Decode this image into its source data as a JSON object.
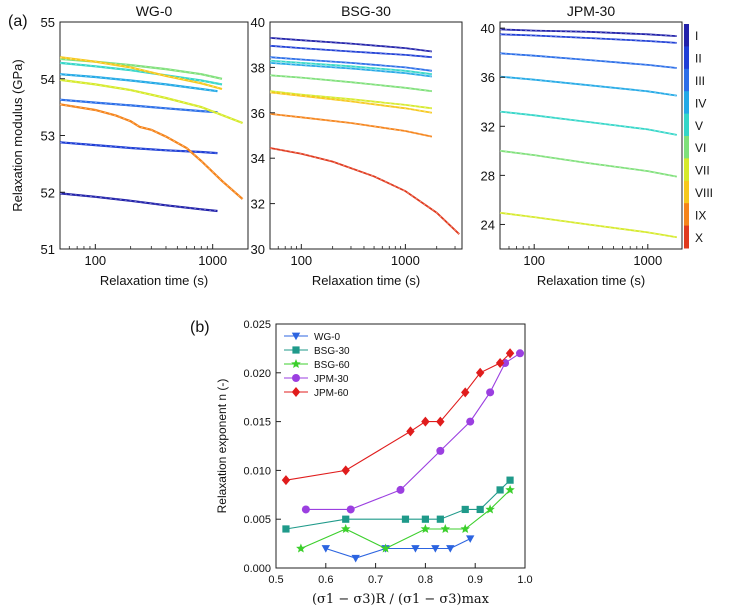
{
  "figure": {
    "panel_a_label": "(a)",
    "panel_b_label": "(b)"
  },
  "colors": {
    "level_colors": [
      "#2222aa",
      "#1f3fd6",
      "#2b6ee8",
      "#23a9e6",
      "#34d6c8",
      "#7fe07a",
      "#d6ea2a",
      "#f6c81c",
      "#f5841b",
      "#e03a1e"
    ],
    "WG-0": "#2c64e0",
    "BSG-30": "#1f9a8a",
    "BSG-60": "#3ccf2c",
    "JPM-30": "#9b3fe0",
    "JPM-60": "#e01c1c"
  },
  "colorbar": {
    "labels": [
      "I",
      "II",
      "III",
      "IV",
      "V",
      "VI",
      "VII",
      "VIII",
      "IX",
      "X"
    ]
  },
  "chart_data": [
    {
      "type": "line",
      "title": "WG-0",
      "xlabel": "Relaxation time (s)",
      "ylabel": "Relaxation modulus (GPa)",
      "xscale": "log",
      "xlim": [
        50,
        2000
      ],
      "ylim": [
        51,
        55
      ],
      "xticks": [
        100,
        1000
      ],
      "xtick_labels": [
        "100",
        "1000"
      ],
      "yticks": [
        51,
        52,
        53,
        54,
        55
      ],
      "ytick_labels": [
        "51",
        "52",
        "53",
        "54",
        "55"
      ],
      "series": [
        {
          "name": "I",
          "x": [
            50,
            100,
            200,
            400,
            800,
            1100
          ],
          "y": [
            51.98,
            51.92,
            51.85,
            51.77,
            51.7,
            51.67
          ]
        },
        {
          "name": "II",
          "x": [
            50,
            100,
            200,
            400,
            800,
            1100
          ],
          "y": [
            52.88,
            52.83,
            52.78,
            52.74,
            52.71,
            52.69
          ]
        },
        {
          "name": "III",
          "x": [
            50,
            100,
            200,
            400,
            800,
            1100
          ],
          "y": [
            53.63,
            53.58,
            53.53,
            53.48,
            53.43,
            53.41
          ]
        },
        {
          "name": "IV",
          "x": [
            50,
            100,
            200,
            400,
            800,
            1100
          ],
          "y": [
            54.08,
            54.03,
            53.97,
            53.9,
            53.82,
            53.78
          ]
        },
        {
          "name": "V",
          "x": [
            50,
            100,
            200,
            400,
            800,
            1200
          ],
          "y": [
            54.28,
            54.22,
            54.15,
            54.06,
            53.97,
            53.9
          ]
        },
        {
          "name": "VI",
          "x": [
            50,
            100,
            200,
            400,
            800,
            1200
          ],
          "y": [
            54.35,
            54.3,
            54.24,
            54.17,
            54.08,
            54.0
          ]
        },
        {
          "name": "VII",
          "x": [
            50,
            100,
            200,
            400,
            800,
            1800
          ],
          "y": [
            53.98,
            53.9,
            53.8,
            53.66,
            53.5,
            53.22
          ]
        },
        {
          "name": "VIII",
          "x": [
            50,
            100,
            200,
            400,
            800,
            1200
          ],
          "y": [
            54.38,
            54.3,
            54.2,
            54.05,
            53.92,
            53.82
          ]
        },
        {
          "name": "IX",
          "x": [
            50,
            100,
            150,
            200,
            240,
            300,
            400,
            600,
            800,
            1200,
            1800
          ],
          "y": [
            53.55,
            53.45,
            53.35,
            53.25,
            53.15,
            53.1,
            52.98,
            52.78,
            52.55,
            52.2,
            51.88
          ]
        }
      ]
    },
    {
      "type": "line",
      "title": "BSG-30",
      "xlabel": "Relaxation time (s)",
      "ylabel": "",
      "xscale": "log",
      "xlim": [
        50,
        3500
      ],
      "ylim": [
        30,
        40
      ],
      "xticks": [
        100,
        1000
      ],
      "xtick_labels": [
        "100",
        "1000"
      ],
      "yticks": [
        30,
        32,
        34,
        36,
        38,
        40
      ],
      "ytick_labels": [
        "30",
        "32",
        "34",
        "36",
        "38",
        "40"
      ],
      "series": [
        {
          "name": "I",
          "x": [
            50,
            100,
            300,
            1000,
            1800
          ],
          "y": [
            39.3,
            39.2,
            39.05,
            38.85,
            38.7
          ]
        },
        {
          "name": "II",
          "x": [
            50,
            100,
            300,
            1000,
            1800
          ],
          "y": [
            38.95,
            38.85,
            38.7,
            38.55,
            38.45
          ]
        },
        {
          "name": "III",
          "x": [
            50,
            100,
            300,
            1000,
            1800
          ],
          "y": [
            38.45,
            38.35,
            38.2,
            38.0,
            37.85
          ]
        },
        {
          "name": "IV",
          "x": [
            50,
            100,
            300,
            1000,
            1800
          ],
          "y": [
            38.2,
            38.1,
            37.95,
            37.75,
            37.6
          ]
        },
        {
          "name": "V",
          "x": [
            50,
            100,
            300,
            1000,
            1800
          ],
          "y": [
            38.3,
            38.2,
            38.05,
            37.85,
            37.7
          ]
        },
        {
          "name": "VI",
          "x": [
            50,
            100,
            300,
            1000,
            1800
          ],
          "y": [
            37.65,
            37.55,
            37.35,
            37.1,
            36.95
          ]
        },
        {
          "name": "VII",
          "x": [
            50,
            100,
            300,
            1000,
            1800
          ],
          "y": [
            36.95,
            36.8,
            36.6,
            36.35,
            36.2
          ]
        },
        {
          "name": "VIII",
          "x": [
            50,
            100,
            300,
            1000,
            1800
          ],
          "y": [
            36.9,
            36.75,
            36.5,
            36.2,
            36.0
          ]
        },
        {
          "name": "IX",
          "x": [
            50,
            100,
            300,
            1000,
            1800
          ],
          "y": [
            35.95,
            35.8,
            35.55,
            35.2,
            34.95
          ]
        },
        {
          "name": "X",
          "x": [
            50,
            100,
            200,
            500,
            1000,
            2000,
            3300
          ],
          "y": [
            34.45,
            34.2,
            33.85,
            33.2,
            32.55,
            31.6,
            30.65
          ]
        }
      ]
    },
    {
      "type": "line",
      "title": "JPM-30",
      "xlabel": "Relaxation time (s)",
      "ylabel": "",
      "xscale": "log",
      "xlim": [
        50,
        2000
      ],
      "ylim": [
        22,
        40.5
      ],
      "xticks": [
        100,
        1000
      ],
      "xtick_labels": [
        "100",
        "1000"
      ],
      "yticks": [
        24,
        28,
        32,
        36,
        40
      ],
      "ytick_labels": [
        "24",
        "28",
        "32",
        "36",
        "40"
      ],
      "series": [
        {
          "name": "I",
          "x": [
            50,
            100,
            300,
            1000,
            1800
          ],
          "y": [
            39.9,
            39.8,
            39.7,
            39.5,
            39.35
          ]
        },
        {
          "name": "II",
          "x": [
            50,
            100,
            300,
            1000,
            1800
          ],
          "y": [
            39.5,
            39.4,
            39.2,
            38.95,
            38.8
          ]
        },
        {
          "name": "III",
          "x": [
            50,
            100,
            300,
            1000,
            1800
          ],
          "y": [
            37.95,
            37.75,
            37.4,
            37.0,
            36.75
          ]
        },
        {
          "name": "IV",
          "x": [
            50,
            100,
            300,
            1000,
            1800
          ],
          "y": [
            36.05,
            35.8,
            35.35,
            34.85,
            34.5
          ]
        },
        {
          "name": "V",
          "x": [
            50,
            100,
            300,
            1000,
            1800
          ],
          "y": [
            33.2,
            32.9,
            32.35,
            31.75,
            31.3
          ]
        },
        {
          "name": "VI",
          "x": [
            50,
            100,
            300,
            1000,
            1800
          ],
          "y": [
            30.0,
            29.65,
            29.0,
            28.35,
            27.9
          ]
        },
        {
          "name": "VII",
          "x": [
            50,
            100,
            300,
            1000,
            1800
          ],
          "y": [
            24.95,
            24.6,
            24.0,
            23.35,
            22.95
          ]
        }
      ]
    },
    {
      "type": "line",
      "title": "",
      "xlabel": "(σ1 − σ3)R / (σ1 − σ3)max",
      "ylabel": "Relaxation exponent n (-)",
      "xlim": [
        0.5,
        1.0
      ],
      "ylim": [
        0,
        0.025
      ],
      "xticks": [
        0.5,
        0.6,
        0.7,
        0.8,
        0.9,
        1.0
      ],
      "xtick_labels": [
        "0.5",
        "0.6",
        "0.7",
        "0.8",
        "0.9",
        "1.0"
      ],
      "yticks": [
        0,
        0.005,
        0.01,
        0.015,
        0.02,
        0.025
      ],
      "ytick_labels": [
        "0.000",
        "0.005",
        "0.010",
        "0.015",
        "0.020",
        "0.025"
      ],
      "legend_position": "top-left",
      "series": [
        {
          "name": "WG-0",
          "marker": "triangle-down",
          "x": [
            0.6,
            0.66,
            0.72,
            0.78,
            0.82,
            0.85,
            0.89
          ],
          "y": [
            0.002,
            0.001,
            0.002,
            0.002,
            0.002,
            0.002,
            0.003
          ]
        },
        {
          "name": "BSG-30",
          "marker": "square",
          "x": [
            0.52,
            0.64,
            0.76,
            0.8,
            0.83,
            0.88,
            0.91,
            0.95,
            0.97
          ],
          "y": [
            0.004,
            0.005,
            0.005,
            0.005,
            0.005,
            0.006,
            0.006,
            0.008,
            0.009
          ]
        },
        {
          "name": "BSG-60",
          "marker": "star",
          "x": [
            0.55,
            0.64,
            0.72,
            0.8,
            0.84,
            0.88,
            0.93,
            0.97
          ],
          "y": [
            0.002,
            0.004,
            0.002,
            0.004,
            0.004,
            0.004,
            0.006,
            0.008
          ]
        },
        {
          "name": "JPM-30",
          "marker": "circle",
          "x": [
            0.56,
            0.65,
            0.75,
            0.83,
            0.89,
            0.93,
            0.96,
            0.99
          ],
          "y": [
            0.006,
            0.006,
            0.008,
            0.012,
            0.015,
            0.018,
            0.021,
            0.022
          ]
        },
        {
          "name": "JPM-60",
          "marker": "diamond",
          "x": [
            0.52,
            0.64,
            0.77,
            0.8,
            0.83,
            0.88,
            0.91,
            0.95,
            0.97
          ],
          "y": [
            0.009,
            0.01,
            0.014,
            0.015,
            0.015,
            0.018,
            0.02,
            0.021,
            0.022
          ]
        }
      ]
    }
  ]
}
